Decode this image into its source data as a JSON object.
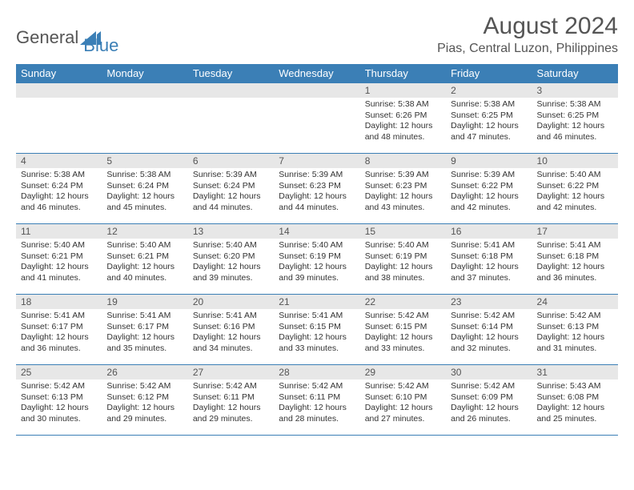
{
  "logo": {
    "text1": "General",
    "text2": "Blue"
  },
  "title": "August 2024",
  "location": "Pias, Central Luzon, Philippines",
  "colors": {
    "header_bg": "#3b7fb6",
    "header_fg": "#ffffff",
    "daynum_bg": "#e7e7e7",
    "border": "#3b7fb6",
    "text": "#333333",
    "title_text": "#555555"
  },
  "weekdays": [
    "Sunday",
    "Monday",
    "Tuesday",
    "Wednesday",
    "Thursday",
    "Friday",
    "Saturday"
  ],
  "weeks": [
    [
      null,
      null,
      null,
      null,
      {
        "n": "1",
        "sr": "Sunrise: 5:38 AM",
        "ss": "Sunset: 6:26 PM",
        "dl": "Daylight: 12 hours and 48 minutes."
      },
      {
        "n": "2",
        "sr": "Sunrise: 5:38 AM",
        "ss": "Sunset: 6:25 PM",
        "dl": "Daylight: 12 hours and 47 minutes."
      },
      {
        "n": "3",
        "sr": "Sunrise: 5:38 AM",
        "ss": "Sunset: 6:25 PM",
        "dl": "Daylight: 12 hours and 46 minutes."
      }
    ],
    [
      {
        "n": "4",
        "sr": "Sunrise: 5:38 AM",
        "ss": "Sunset: 6:24 PM",
        "dl": "Daylight: 12 hours and 46 minutes."
      },
      {
        "n": "5",
        "sr": "Sunrise: 5:38 AM",
        "ss": "Sunset: 6:24 PM",
        "dl": "Daylight: 12 hours and 45 minutes."
      },
      {
        "n": "6",
        "sr": "Sunrise: 5:39 AM",
        "ss": "Sunset: 6:24 PM",
        "dl": "Daylight: 12 hours and 44 minutes."
      },
      {
        "n": "7",
        "sr": "Sunrise: 5:39 AM",
        "ss": "Sunset: 6:23 PM",
        "dl": "Daylight: 12 hours and 44 minutes."
      },
      {
        "n": "8",
        "sr": "Sunrise: 5:39 AM",
        "ss": "Sunset: 6:23 PM",
        "dl": "Daylight: 12 hours and 43 minutes."
      },
      {
        "n": "9",
        "sr": "Sunrise: 5:39 AM",
        "ss": "Sunset: 6:22 PM",
        "dl": "Daylight: 12 hours and 42 minutes."
      },
      {
        "n": "10",
        "sr": "Sunrise: 5:40 AM",
        "ss": "Sunset: 6:22 PM",
        "dl": "Daylight: 12 hours and 42 minutes."
      }
    ],
    [
      {
        "n": "11",
        "sr": "Sunrise: 5:40 AM",
        "ss": "Sunset: 6:21 PM",
        "dl": "Daylight: 12 hours and 41 minutes."
      },
      {
        "n": "12",
        "sr": "Sunrise: 5:40 AM",
        "ss": "Sunset: 6:21 PM",
        "dl": "Daylight: 12 hours and 40 minutes."
      },
      {
        "n": "13",
        "sr": "Sunrise: 5:40 AM",
        "ss": "Sunset: 6:20 PM",
        "dl": "Daylight: 12 hours and 39 minutes."
      },
      {
        "n": "14",
        "sr": "Sunrise: 5:40 AM",
        "ss": "Sunset: 6:19 PM",
        "dl": "Daylight: 12 hours and 39 minutes."
      },
      {
        "n": "15",
        "sr": "Sunrise: 5:40 AM",
        "ss": "Sunset: 6:19 PM",
        "dl": "Daylight: 12 hours and 38 minutes."
      },
      {
        "n": "16",
        "sr": "Sunrise: 5:41 AM",
        "ss": "Sunset: 6:18 PM",
        "dl": "Daylight: 12 hours and 37 minutes."
      },
      {
        "n": "17",
        "sr": "Sunrise: 5:41 AM",
        "ss": "Sunset: 6:18 PM",
        "dl": "Daylight: 12 hours and 36 minutes."
      }
    ],
    [
      {
        "n": "18",
        "sr": "Sunrise: 5:41 AM",
        "ss": "Sunset: 6:17 PM",
        "dl": "Daylight: 12 hours and 36 minutes."
      },
      {
        "n": "19",
        "sr": "Sunrise: 5:41 AM",
        "ss": "Sunset: 6:17 PM",
        "dl": "Daylight: 12 hours and 35 minutes."
      },
      {
        "n": "20",
        "sr": "Sunrise: 5:41 AM",
        "ss": "Sunset: 6:16 PM",
        "dl": "Daylight: 12 hours and 34 minutes."
      },
      {
        "n": "21",
        "sr": "Sunrise: 5:41 AM",
        "ss": "Sunset: 6:15 PM",
        "dl": "Daylight: 12 hours and 33 minutes."
      },
      {
        "n": "22",
        "sr": "Sunrise: 5:42 AM",
        "ss": "Sunset: 6:15 PM",
        "dl": "Daylight: 12 hours and 33 minutes."
      },
      {
        "n": "23",
        "sr": "Sunrise: 5:42 AM",
        "ss": "Sunset: 6:14 PM",
        "dl": "Daylight: 12 hours and 32 minutes."
      },
      {
        "n": "24",
        "sr": "Sunrise: 5:42 AM",
        "ss": "Sunset: 6:13 PM",
        "dl": "Daylight: 12 hours and 31 minutes."
      }
    ],
    [
      {
        "n": "25",
        "sr": "Sunrise: 5:42 AM",
        "ss": "Sunset: 6:13 PM",
        "dl": "Daylight: 12 hours and 30 minutes."
      },
      {
        "n": "26",
        "sr": "Sunrise: 5:42 AM",
        "ss": "Sunset: 6:12 PM",
        "dl": "Daylight: 12 hours and 29 minutes."
      },
      {
        "n": "27",
        "sr": "Sunrise: 5:42 AM",
        "ss": "Sunset: 6:11 PM",
        "dl": "Daylight: 12 hours and 29 minutes."
      },
      {
        "n": "28",
        "sr": "Sunrise: 5:42 AM",
        "ss": "Sunset: 6:11 PM",
        "dl": "Daylight: 12 hours and 28 minutes."
      },
      {
        "n": "29",
        "sr": "Sunrise: 5:42 AM",
        "ss": "Sunset: 6:10 PM",
        "dl": "Daylight: 12 hours and 27 minutes."
      },
      {
        "n": "30",
        "sr": "Sunrise: 5:42 AM",
        "ss": "Sunset: 6:09 PM",
        "dl": "Daylight: 12 hours and 26 minutes."
      },
      {
        "n": "31",
        "sr": "Sunrise: 5:43 AM",
        "ss": "Sunset: 6:08 PM",
        "dl": "Daylight: 12 hours and 25 minutes."
      }
    ]
  ]
}
